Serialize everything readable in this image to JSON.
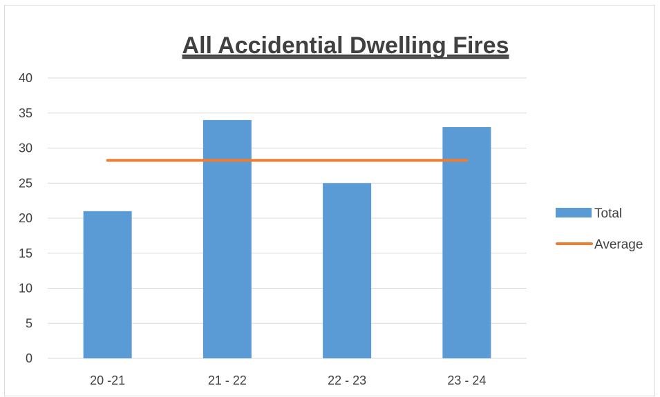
{
  "chart_data": {
    "type": "bar",
    "title": "All Accidential Dwelling Fires",
    "categories": [
      "20 -21",
      "21 - 22",
      "22 - 23",
      "23 - 24"
    ],
    "series": [
      {
        "name": "Total",
        "type": "bar",
        "values": [
          21,
          34,
          25,
          33
        ]
      },
      {
        "name": "Average",
        "type": "line",
        "values": [
          28.25,
          28.25,
          28.25,
          28.25
        ]
      }
    ],
    "ylim": [
      0,
      40
    ],
    "yticks": [
      0,
      5,
      10,
      15,
      20,
      25,
      30,
      35,
      40
    ],
    "grid": true,
    "legend_position": "right",
    "colors": {
      "Total": "#5b9bd5",
      "Average": "#ed7d31"
    }
  }
}
